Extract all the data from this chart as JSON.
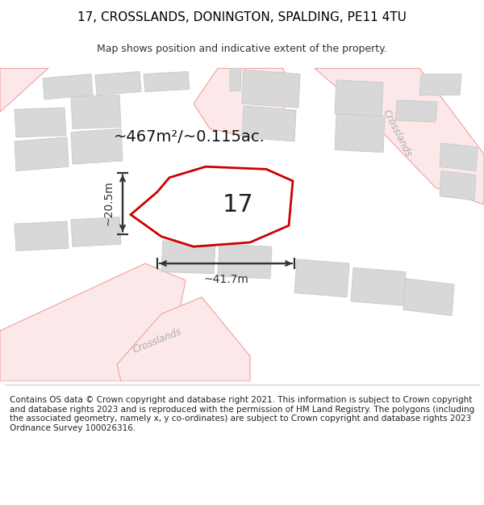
{
  "title_line1": "17, CROSSLANDS, DONINGTON, SPALDING, PE11 4TU",
  "title_line2": "Map shows position and indicative extent of the property.",
  "area_text": "~467m²/~0.115ac.",
  "label_17": "17",
  "dim_width": "~41.7m",
  "dim_height": "~20.5m",
  "footer_text": "Contains OS data © Crown copyright and database right 2021. This information is subject to Crown copyright and database rights 2023 and is reproduced with the permission of HM Land Registry. The polygons (including the associated geometry, namely x, y co-ordinates) are subject to Crown copyright and database rights 2023 Ordnance Survey 100026316.",
  "map_bg": "#ffffff",
  "road_line_color": "#f0a0a0",
  "road_fill_color": "#fce8e8",
  "building_fill": "#d8d8d8",
  "building_edge": "#cccccc",
  "road_center_color": "#e8e8e8",
  "highlight_fill": "#ffffff",
  "highlight_edge": "#cc0000",
  "street_label_color": "#aaaaaa",
  "dim_color": "#333333",
  "title_color": "#000000",
  "footer_color": "#222222",
  "title_fontsize": 11,
  "subtitle_fontsize": 9,
  "area_fontsize": 14,
  "label_fontsize": 22,
  "dim_fontsize": 10,
  "footer_fontsize": 7.5
}
